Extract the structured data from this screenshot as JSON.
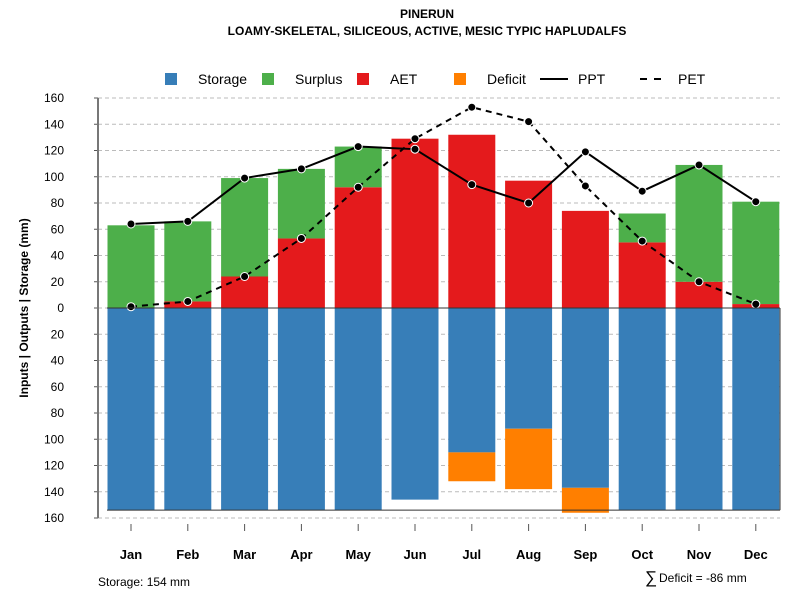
{
  "chart_data": {
    "type": "bar",
    "title": "PINERUN",
    "subtitle": "LOAMY-SKELETAL, SILICEOUS, ACTIVE, MESIC TYPIC HAPLUDALFS",
    "ylabel": "Inputs | Outputs | Storage    (mm)",
    "xlabel": "",
    "ylim": [
      -160,
      160
    ],
    "yticks": [
      160,
      140,
      120,
      100,
      80,
      60,
      40,
      20,
      0,
      20,
      40,
      60,
      80,
      100,
      120,
      140,
      160
    ],
    "grid": true,
    "legend_position": "top",
    "categories": [
      "Jan",
      "Feb",
      "Mar",
      "Apr",
      "May",
      "Jun",
      "Jul",
      "Aug",
      "Sep",
      "Oct",
      "Nov",
      "Dec"
    ],
    "series": [
      {
        "name": "Storage",
        "kind": "bar-below",
        "color": "#377EB8",
        "values": [
          154,
          154,
          154,
          154,
          154,
          146,
          110,
          92,
          137,
          154,
          154,
          154
        ]
      },
      {
        "name": "Surplus",
        "kind": "bar-stacked-above",
        "color": "#4DAF4A",
        "values": [
          63,
          61,
          75,
          53,
          31,
          0,
          0,
          0,
          0,
          22,
          89,
          78
        ]
      },
      {
        "name": "AET",
        "kind": "bar-above",
        "color": "#E41A1C",
        "values": [
          0,
          5,
          24,
          53,
          92,
          129,
          132,
          97,
          74,
          50,
          20,
          3
        ]
      },
      {
        "name": "Deficit",
        "kind": "bar-below-stacked",
        "color": "#FF7F00",
        "values": [
          0,
          0,
          0,
          0,
          0,
          0,
          22,
          46,
          19,
          0,
          0,
          0
        ]
      },
      {
        "name": "PPT",
        "kind": "line-solid",
        "color": "#000000",
        "values": [
          64,
          66,
          99,
          106,
          123,
          121,
          94,
          80,
          119,
          89,
          109,
          81
        ]
      },
      {
        "name": "PET",
        "kind": "line-dashed",
        "color": "#000000",
        "values": [
          1,
          5,
          24,
          53,
          92,
          129,
          153,
          142,
          93,
          51,
          20,
          3
        ]
      }
    ],
    "annotations": {
      "storage": "Storage: 154 mm",
      "deficit_symbol": "∑",
      "deficit": "Deficit = -86 mm"
    }
  }
}
